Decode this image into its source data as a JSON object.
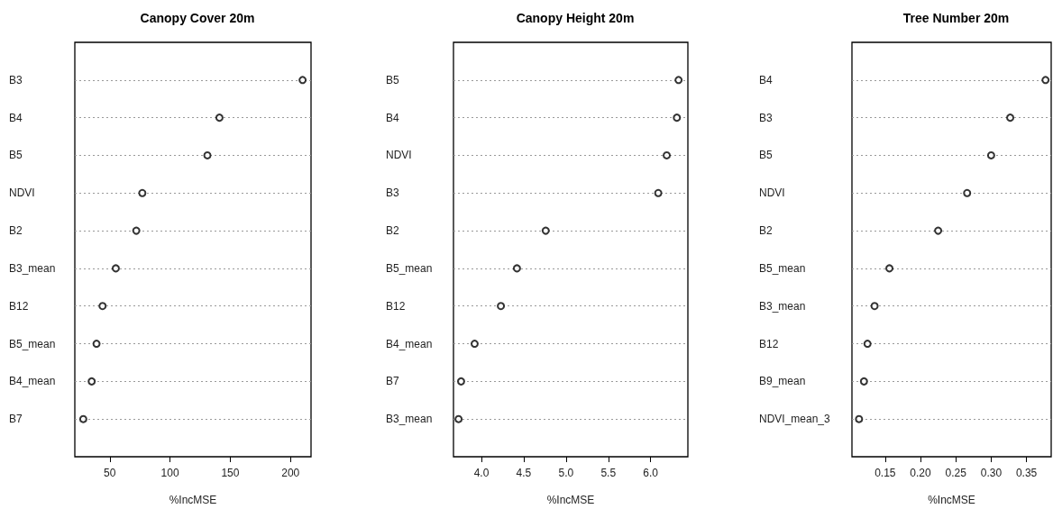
{
  "chart_data": [
    {
      "type": "scatter",
      "orientation": "horizontal",
      "title": "Canopy Cover 20m",
      "xlabel": "%IncMSE",
      "categories": [
        "B3",
        "B4",
        "B5",
        "NDVI",
        "B2",
        "B3_mean",
        "B12",
        "B5_mean",
        "B4_mean",
        "B7"
      ],
      "values": [
        210,
        141,
        131,
        77,
        72,
        55,
        44,
        39,
        35,
        28
      ],
      "color": "#000000",
      "xlim": [
        21,
        217
      ],
      "xticks": [
        50,
        100,
        150,
        200
      ],
      "grid": "y",
      "marker": "circle"
    },
    {
      "type": "scatter",
      "orientation": "horizontal",
      "title": "Canopy Height 20m",
      "xlabel": "%IncMSE",
      "categories": [
        "B5",
        "B4",
        "NDVI",
        "B3",
        "B2",
        "B5_mean",
        "B12",
        "B4_mean",
        "B7",
        "B3_mean"
      ],
      "values": [
        6.33,
        6.31,
        6.19,
        6.09,
        4.76,
        4.42,
        4.23,
        3.92,
        3.76,
        3.73
      ],
      "color": "#000000",
      "xlim": [
        3.67,
        6.44
      ],
      "xticks": [
        {
          "value": 4,
          "label": "4.0"
        },
        4.5,
        {
          "value": 5,
          "label": "5.0"
        },
        5.5,
        {
          "value": 6,
          "label": "6.0"
        }
      ],
      "grid": "y",
      "marker": "circle"
    },
    {
      "type": "scatter",
      "orientation": "horizontal",
      "title": "Tree Number 20m",
      "xlabel": "%IncMSE",
      "categories": [
        "B4",
        "B3",
        "B5",
        "NDVI",
        "B2",
        "B5_mean",
        "B3_mean",
        "B12",
        "B9_mean",
        "NDVI_mean_3"
      ],
      "values": [
        0.377,
        0.327,
        0.3,
        0.266,
        0.225,
        0.156,
        0.135,
        0.125,
        0.12,
        0.113
      ],
      "color": "#000000",
      "xlim": [
        0.103,
        0.385
      ],
      "xticks": [
        0.15,
        {
          "value": 0.2,
          "label": "0.20"
        },
        0.25,
        {
          "value": 0.3,
          "label": "0.30"
        },
        0.35
      ],
      "grid": "y",
      "marker": "circle"
    }
  ]
}
